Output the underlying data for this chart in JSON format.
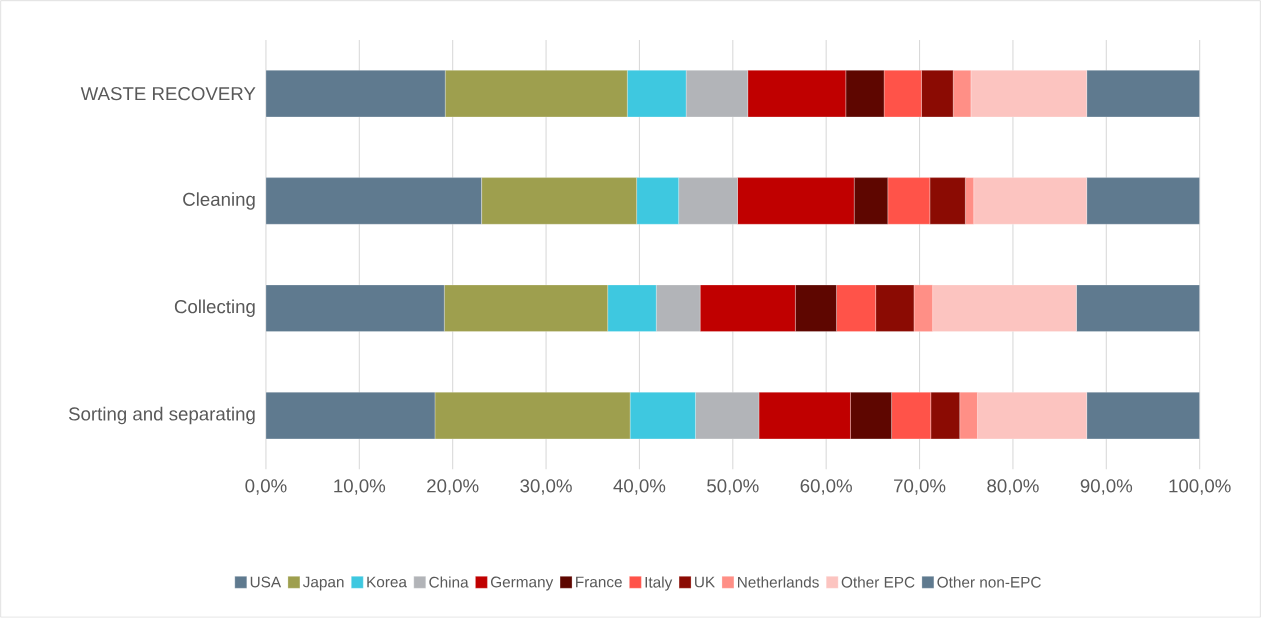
{
  "chart_data": {
    "type": "bar",
    "orientation": "horizontal",
    "stacked": true,
    "grid": "x",
    "legend": "bottom",
    "categories": [
      "WASTE RECOVERY",
      "Cleaning",
      "Collecting",
      "Sorting and separating"
    ],
    "xlim": [
      0,
      100
    ],
    "xticks": [
      {
        "value": 0,
        "label": "0,0%"
      },
      {
        "value": 10,
        "label": "10,0%"
      },
      {
        "value": 20,
        "label": "20,0%"
      },
      {
        "value": 30,
        "label": "30,0%"
      },
      {
        "value": 40,
        "label": "40,0%"
      },
      {
        "value": 50,
        "label": "50,0%"
      },
      {
        "value": 60,
        "label": "60,0%"
      },
      {
        "value": 70,
        "label": "70,0%"
      },
      {
        "value": 80,
        "label": "80,0%"
      },
      {
        "value": 90,
        "label": "90,0%"
      },
      {
        "value": 100,
        "label": "100,0%"
      }
    ],
    "series": [
      {
        "name": "USA",
        "color": "#5f7a8f",
        "values": [
          19.2,
          23.1,
          19.1,
          18.1
        ]
      },
      {
        "name": "Japan",
        "color": "#9e9f4e",
        "values": [
          19.5,
          16.6,
          17.5,
          20.9
        ]
      },
      {
        "name": "Korea",
        "color": "#3ec8e0",
        "values": [
          6.3,
          4.5,
          5.2,
          7.0
        ]
      },
      {
        "name": "China",
        "color": "#b2b4b8",
        "values": [
          6.6,
          6.3,
          4.7,
          6.8
        ]
      },
      {
        "name": "Germany",
        "color": "#c00000",
        "values": [
          10.5,
          12.5,
          10.2,
          9.8
        ]
      },
      {
        "name": "France",
        "color": "#5e0600",
        "values": [
          4.1,
          3.6,
          4.4,
          4.4
        ]
      },
      {
        "name": "Italy",
        "color": "#ff5349",
        "values": [
          4.0,
          4.5,
          4.2,
          4.2
        ]
      },
      {
        "name": "UK",
        "color": "#8b0b03",
        "values": [
          3.4,
          3.8,
          4.1,
          3.1
        ]
      },
      {
        "name": "Netherlands",
        "color": "#ff8f86",
        "values": [
          1.9,
          0.9,
          2.0,
          1.9
        ]
      },
      {
        "name": "Other EPC",
        "color": "#fcc4c0",
        "values": [
          12.4,
          12.1,
          15.4,
          11.7
        ]
      },
      {
        "name": "Other non-EPC",
        "color": "#5f7a8f",
        "values": [
          12.1,
          12.1,
          13.2,
          12.1
        ]
      }
    ]
  }
}
